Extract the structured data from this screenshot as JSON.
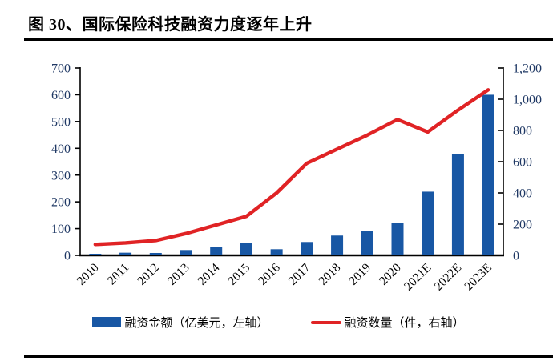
{
  "figure": {
    "title": "图 30、国际保险科技融资力度逐年上升"
  },
  "legend": {
    "bar_label": "融资金额（亿美元，左轴）",
    "line_label": "融资数量（件，右轴）"
  },
  "colors": {
    "bar": "#1857A4",
    "line": "#E02325",
    "axis": "#000000",
    "tick_label": "#1F3864",
    "x_label": "#000000"
  },
  "chart_data": {
    "type": "bar+line combo",
    "title": "图 30、国际保险科技融资力度逐年上升",
    "categories": [
      "2010",
      "2011",
      "2012",
      "2013",
      "2014",
      "2015",
      "2016",
      "2017",
      "2018",
      "2019",
      "2020",
      "2021E",
      "2022E",
      "2023E"
    ],
    "series": [
      {
        "name": "融资金额（亿美元，左轴）",
        "type": "bar",
        "axis": "left",
        "values": [
          6,
          10,
          9,
          20,
          32,
          45,
          23,
          50,
          74,
          92,
          121,
          238,
          377,
          600
        ]
      },
      {
        "name": "融资数量（件，右轴）",
        "type": "line",
        "axis": "right",
        "values": [
          70,
          80,
          95,
          140,
          195,
          250,
          400,
          590,
          680,
          770,
          870,
          790,
          930,
          1060
        ]
      }
    ],
    "left_axis": {
      "min": 0,
      "max": 700,
      "ticks": [
        "0",
        "100",
        "200",
        "300",
        "400",
        "500",
        "600",
        "700"
      ]
    },
    "right_axis": {
      "min": 0,
      "max": 1200,
      "ticks": [
        "0",
        "200",
        "400",
        "600",
        "800",
        "1,000",
        "1,200"
      ]
    },
    "grid": false,
    "legend_position": "bottom"
  }
}
